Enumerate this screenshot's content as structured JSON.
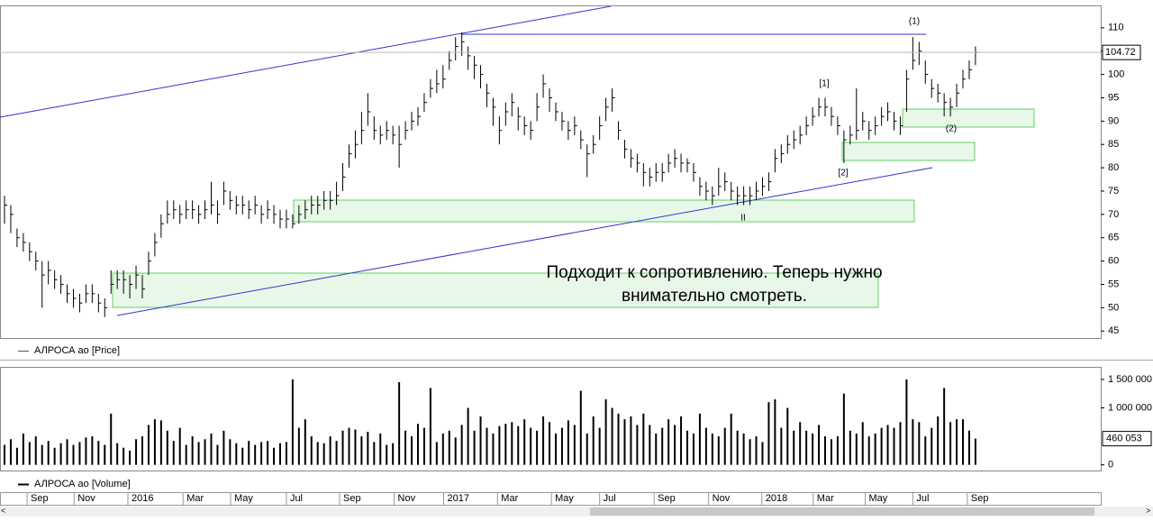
{
  "chart_data": [
    {
      "type": "ohlc",
      "name": "АЛРОСА ао [Price]",
      "color": "#000000",
      "close": [
        72,
        70,
        65,
        64,
        62,
        60,
        57,
        58,
        56,
        55,
        53,
        52,
        51,
        53,
        53,
        51,
        50,
        55,
        56,
        56,
        55,
        57,
        54,
        60,
        64,
        68,
        70,
        71,
        70,
        71,
        71,
        70,
        71,
        72,
        70,
        75,
        73,
        72,
        72,
        71,
        72,
        70,
        71,
        70,
        69,
        69,
        68,
        70,
        71,
        72,
        72,
        73,
        73,
        74,
        78,
        83,
        85,
        88,
        92,
        88,
        87,
        88,
        87,
        85,
        88,
        90,
        91,
        94,
        97,
        98,
        99,
        103,
        106,
        107,
        104,
        102,
        100,
        96,
        93,
        88,
        92,
        94,
        91,
        89,
        88,
        93,
        98,
        95,
        92,
        90,
        88,
        89,
        86,
        83,
        85,
        89,
        93,
        95,
        88,
        84,
        82,
        81,
        79,
        78,
        79,
        79,
        81,
        82,
        81,
        81,
        79,
        76,
        75,
        74,
        76,
        77,
        75,
        74,
        74,
        74,
        75,
        76,
        77,
        82,
        83,
        85,
        86,
        87,
        89,
        91,
        93,
        93,
        91,
        89,
        86,
        87,
        88,
        90,
        88,
        89,
        91,
        92,
        90,
        89,
        99,
        103,
        105,
        100,
        97,
        96,
        94,
        93,
        96,
        99,
        101,
        104.72
      ],
      "high": [
        74,
        72,
        67,
        66,
        64,
        62,
        60,
        60,
        58,
        57,
        55,
        54,
        53,
        55,
        55,
        53,
        52,
        58,
        58,
        58,
        57,
        59,
        57,
        62,
        66,
        70,
        73,
        73,
        72,
        73,
        73,
        72,
        73,
        77,
        73,
        77,
        75,
        74,
        74,
        73,
        74,
        72,
        73,
        72,
        71,
        71,
        70,
        72,
        73,
        74,
        74,
        75,
        75,
        77,
        81,
        85,
        88,
        92,
        96,
        91,
        89,
        90,
        89,
        89,
        90,
        92,
        93,
        96,
        99,
        101,
        102,
        105,
        108,
        109,
        106,
        104,
        102,
        98,
        95,
        91,
        94,
        96,
        93,
        91,
        90,
        96,
        100,
        97,
        94,
        92,
        90,
        91,
        88,
        85,
        87,
        91,
        95,
        97,
        90,
        86,
        84,
        83,
        81,
        80,
        81,
        81,
        83,
        84,
        83,
        82,
        81,
        78,
        77,
        76,
        80,
        79,
        77,
        76,
        76,
        76,
        77,
        78,
        79,
        84,
        85,
        87,
        88,
        89,
        91,
        93,
        95,
        95,
        93,
        91,
        88,
        89,
        97,
        92,
        90,
        91,
        93,
        94,
        92,
        91,
        101,
        108,
        107,
        103,
        99,
        98,
        96,
        95,
        98,
        101,
        103,
        106
      ],
      "low": [
        68,
        66,
        63,
        62,
        60,
        58,
        50,
        55,
        54,
        53,
        51,
        50,
        49,
        51,
        51,
        49,
        48,
        53,
        54,
        53,
        52,
        54,
        52,
        57,
        61,
        65,
        68,
        69,
        68,
        69,
        69,
        68,
        69,
        70,
        68,
        72,
        71,
        70,
        70,
        69,
        70,
        68,
        69,
        68,
        67,
        67,
        67,
        68,
        69,
        70,
        70,
        71,
        71,
        72,
        75,
        80,
        82,
        85,
        89,
        86,
        85,
        86,
        85,
        80,
        86,
        88,
        89,
        92,
        95,
        96,
        97,
        101,
        103,
        104,
        101,
        99,
        97,
        93,
        89,
        85,
        89,
        91,
        88,
        87,
        86,
        90,
        95,
        92,
        90,
        88,
        86,
        87,
        84,
        78,
        83,
        86,
        90,
        92,
        86,
        82,
        80,
        79,
        76,
        76,
        77,
        77,
        79,
        80,
        79,
        79,
        77,
        74,
        73,
        72,
        74,
        75,
        73,
        72,
        72,
        72,
        73,
        74,
        75,
        79,
        81,
        83,
        84,
        85,
        87,
        89,
        91,
        91,
        89,
        87,
        81,
        85,
        86,
        88,
        86,
        87,
        89,
        90,
        88,
        87,
        92,
        101,
        102,
        98,
        95,
        94,
        91,
        91,
        93,
        97,
        99,
        102
      ],
      "last_value": 104.72,
      "xlim": [
        0,
        175
      ],
      "ylim": [
        43.5,
        114.8
      ],
      "yticks": [
        45,
        50,
        55,
        60,
        65,
        70,
        75,
        80,
        85,
        90,
        95,
        100,
        105,
        110
      ],
      "annotations": [
        "(1)",
        "[1]",
        "[2]",
        "(2)",
        "II"
      ],
      "comment": [
        "Подходит к сопротивлению. Теперь нужно",
        "внимательно смотреть."
      ]
    },
    {
      "type": "bar",
      "name": "АЛРОСА ао [Volume]",
      "color": "#000000",
      "values": [
        350000,
        450000,
        300000,
        550000,
        400000,
        500000,
        350000,
        420000,
        300000,
        380000,
        450000,
        350000,
        400000,
        480000,
        500000,
        420000,
        350000,
        900000,
        380000,
        300000,
        250000,
        450000,
        500000,
        700000,
        800000,
        780000,
        600000,
        420000,
        650000,
        350000,
        500000,
        400000,
        450000,
        550000,
        350000,
        600000,
        450000,
        380000,
        300000,
        420000,
        350000,
        400000,
        420000,
        300000,
        380000,
        400000,
        1500000,
        650000,
        800000,
        500000,
        400000,
        380000,
        500000,
        420000,
        600000,
        650000,
        620000,
        500000,
        580000,
        400000,
        550000,
        350000,
        380000,
        1450000,
        600000,
        500000,
        720000,
        650000,
        1350000,
        400000,
        550000,
        600000,
        480000,
        700000,
        1000000,
        600000,
        850000,
        650000,
        550000,
        680000,
        720000,
        750000,
        680000,
        800000,
        650000,
        600000,
        850000,
        750000,
        550000,
        650000,
        780000,
        700000,
        1300000,
        550000,
        850000,
        650000,
        1150000,
        1000000,
        900000,
        800000,
        850000,
        700000,
        900000,
        700000,
        550000,
        650000,
        800000,
        700000,
        850000,
        600000,
        550000,
        900000,
        650000,
        550000,
        500000,
        650000,
        900000,
        600000,
        550000,
        450000,
        500000,
        400000,
        1100000,
        1150000,
        650000,
        1000000,
        600000,
        750000,
        600000,
        550000,
        700000,
        500000,
        450000,
        500000,
        1250000,
        600000,
        550000,
        750000,
        500000,
        550000,
        650000,
        700000,
        650000,
        750000,
        1500000,
        800000,
        750000,
        500000,
        650000,
        850000,
        1350000,
        750000,
        800000,
        800000,
        600000,
        460053
      ],
      "last_value_label": "460 053",
      "xlim": [
        0,
        175
      ],
      "ylim": [
        -100000,
        1720000
      ],
      "yticks": [
        0,
        {
          "value": 1000000,
          "label": "1 000 000"
        },
        {
          "value": 1500000,
          "label": "1 500 000"
        }
      ],
      "xticks": [
        {
          "value": 3.6,
          "label": "Sep"
        },
        {
          "value": 11.1,
          "label": "Nov"
        },
        {
          "value": 19.7,
          "label": "2016"
        },
        {
          "value": 28.5,
          "label": "Mar"
        },
        {
          "value": 36.1,
          "label": "May"
        },
        {
          "value": 45,
          "label": "Jul"
        },
        {
          "value": 53.5,
          "label": "Sep"
        },
        {
          "value": 62.2,
          "label": "Nov"
        },
        {
          "value": 70.1,
          "label": "2017"
        },
        {
          "value": 78.7,
          "label": "Mar"
        },
        {
          "value": 87.3,
          "label": "May"
        },
        {
          "value": 95,
          "label": "Jul"
        },
        {
          "value": 103.7,
          "label": "Sep"
        },
        {
          "value": 112.4,
          "label": "Nov"
        },
        {
          "value": 120.9,
          "label": "2018"
        },
        {
          "value": 129.1,
          "label": "Mar"
        },
        {
          "value": 137.4,
          "label": "May"
        },
        {
          "value": 145,
          "label": "Jul"
        },
        {
          "value": 153.7,
          "label": "Sep"
        }
      ]
    }
  ]
}
